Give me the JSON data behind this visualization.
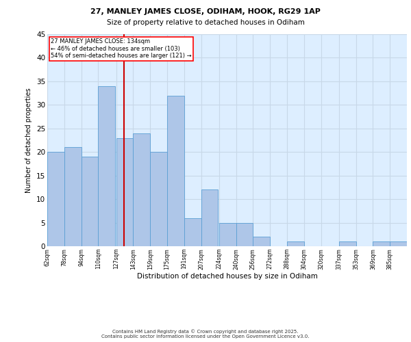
{
  "title1": "27, MANLEY JAMES CLOSE, ODIHAM, HOOK, RG29 1AP",
  "title2": "Size of property relative to detached houses in Odiham",
  "xlabel": "Distribution of detached houses by size in Odiham",
  "ylabel": "Number of detached properties",
  "bin_labels": [
    "62sqm",
    "78sqm",
    "94sqm",
    "110sqm",
    "127sqm",
    "143sqm",
    "159sqm",
    "175sqm",
    "191sqm",
    "207sqm",
    "224sqm",
    "240sqm",
    "256sqm",
    "272sqm",
    "288sqm",
    "304sqm",
    "320sqm",
    "337sqm",
    "353sqm",
    "369sqm",
    "385sqm"
  ],
  "bin_edges": [
    62,
    78,
    94,
    110,
    127,
    143,
    159,
    175,
    191,
    207,
    224,
    240,
    256,
    272,
    288,
    304,
    320,
    337,
    353,
    369,
    385,
    401
  ],
  "values": [
    20,
    21,
    19,
    34,
    23,
    24,
    20,
    32,
    6,
    12,
    5,
    5,
    2,
    0,
    1,
    0,
    0,
    1,
    0,
    1,
    1
  ],
  "bar_color": "#aec6e8",
  "bar_edge_color": "#5a9fd4",
  "grid_color": "#c8d8e8",
  "background_color": "#ddeeff",
  "red_line_x": 134,
  "annotation_lines": [
    "27 MANLEY JAMES CLOSE: 134sqm",
    "← 46% of detached houses are smaller (103)",
    "54% of semi-detached houses are larger (121) →"
  ],
  "annotation_box_color": "white",
  "annotation_box_edge": "red",
  "red_line_color": "#cc0000",
  "footer1": "Contains HM Land Registry data © Crown copyright and database right 2025.",
  "footer2": "Contains public sector information licensed under the Open Government Licence v3.0.",
  "ylim": [
    0,
    45
  ],
  "yticks": [
    0,
    5,
    10,
    15,
    20,
    25,
    30,
    35,
    40,
    45
  ]
}
